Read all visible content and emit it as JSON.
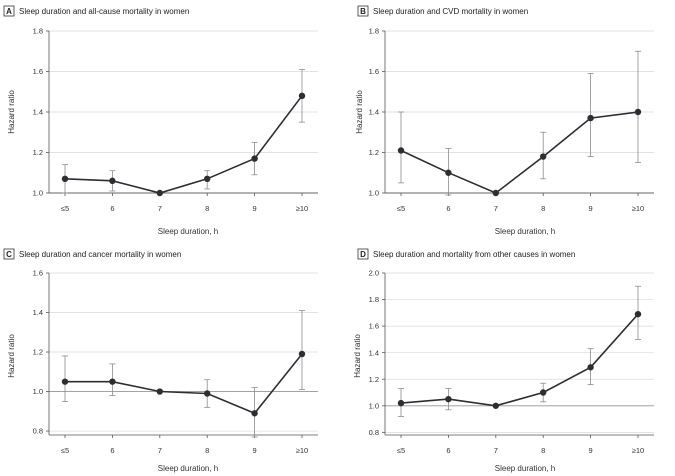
{
  "figure": {
    "x_axis_label": "Sleep duration, h",
    "y_axis_label": "Hazard ratio"
  },
  "chart_data": [
    {
      "type": "line",
      "panel_letter": "A",
      "title": "Sleep duration and all-cause mortality in women",
      "xlabel": "Sleep duration, h",
      "ylabel": "Hazard ratio",
      "categories": [
        "≤5",
        "6",
        "7",
        "8",
        "9",
        "≥10"
      ],
      "x": [
        5,
        6,
        7,
        8,
        9,
        10
      ],
      "values": [
        1.07,
        1.06,
        1.0,
        1.07,
        1.17,
        1.48
      ],
      "ci_low": [
        1.0,
        1.01,
        1.0,
        1.02,
        1.09,
        1.35
      ],
      "ci_high": [
        1.14,
        1.11,
        1.0,
        1.11,
        1.25,
        1.61
      ],
      "yticks": [
        "1.0",
        "1.2",
        "1.4",
        "1.6",
        "1.8"
      ],
      "ylim": [
        1.0,
        1.8
      ],
      "reference_line": 1.0
    },
    {
      "type": "line",
      "panel_letter": "B",
      "title": "Sleep duration and CVD mortality in women",
      "xlabel": "Sleep duration, h",
      "ylabel": "Hazard ratio",
      "categories": [
        "≤5",
        "6",
        "7",
        "8",
        "9",
        "≥10"
      ],
      "x": [
        5,
        6,
        7,
        8,
        9,
        10
      ],
      "values": [
        1.21,
        1.1,
        1.0,
        1.18,
        1.37,
        1.4
      ],
      "ci_low": [
        1.05,
        0.99,
        1.0,
        1.07,
        1.18,
        1.15
      ],
      "ci_high": [
        1.4,
        1.22,
        1.0,
        1.3,
        1.59,
        1.7
      ],
      "yticks": [
        "1.0",
        "1.2",
        "1.4",
        "1.6",
        "1.8"
      ],
      "ylim": [
        1.0,
        1.8
      ],
      "reference_line": 1.0
    },
    {
      "type": "line",
      "panel_letter": "C",
      "title": "Sleep duration and cancer mortality in women",
      "xlabel": "Sleep duration, h",
      "ylabel": "Hazard ratio",
      "categories": [
        "≤5",
        "6",
        "7",
        "8",
        "9",
        "≥10"
      ],
      "x": [
        5,
        6,
        7,
        8,
        9,
        10
      ],
      "values": [
        1.05,
        1.05,
        1.0,
        0.99,
        0.89,
        1.19
      ],
      "ci_low": [
        0.95,
        0.98,
        1.0,
        0.92,
        0.77,
        1.01
      ],
      "ci_high": [
        1.18,
        1.14,
        1.0,
        1.06,
        1.02,
        1.41
      ],
      "yticks": [
        "0.8",
        "1.0",
        "1.2",
        "1.4",
        "1.6"
      ],
      "ylim": [
        0.78,
        1.6
      ],
      "reference_line": 1.0
    },
    {
      "type": "line",
      "panel_letter": "D",
      "title": "Sleep duration and mortality from other causes in women",
      "xlabel": "Sleep duration, h",
      "ylabel": "Hazard ratio",
      "categories": [
        "≤5",
        "6",
        "7",
        "8",
        "9",
        "≥10"
      ],
      "x": [
        5,
        6,
        7,
        8,
        9,
        10
      ],
      "values": [
        1.02,
        1.05,
        1.0,
        1.1,
        1.29,
        1.69
      ],
      "ci_low": [
        0.92,
        0.97,
        1.0,
        1.03,
        1.16,
        1.5
      ],
      "ci_high": [
        1.13,
        1.13,
        1.0,
        1.17,
        1.43,
        1.9
      ],
      "yticks": [
        "0.8",
        "1.0",
        "1.2",
        "1.4",
        "1.6",
        "1.8",
        "2.0"
      ],
      "ylim": [
        0.78,
        2.0
      ],
      "reference_line": 1.0
    }
  ]
}
